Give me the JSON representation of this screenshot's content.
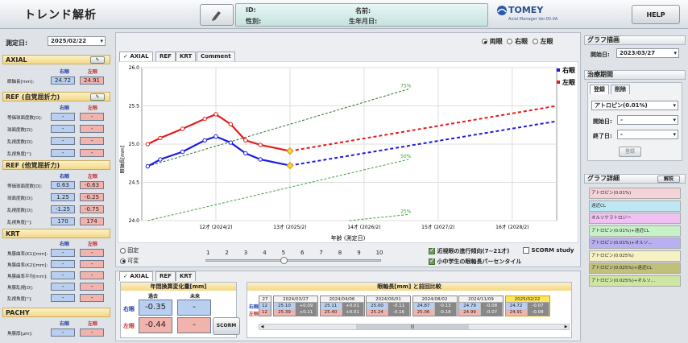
{
  "header": {
    "title": "トレンド解析",
    "id_label": "ID:",
    "name_label": "名前:",
    "sex_label": "性別:",
    "dob_label": "生年月日:",
    "logo": "TOMEY",
    "logo_sub": "Axial Manager  Ver.00.0A",
    "help": "HELP"
  },
  "left": {
    "date_label": "測定日:",
    "date_value": "2025/02/22",
    "axial": {
      "title": "AXIAL",
      "right": "右眼",
      "left": "左眼",
      "row": "眼軸長[mm]:",
      "r": "24.72",
      "l": "24.91"
    },
    "ref_self": {
      "title": "REF (自覚屈折力)",
      "right": "右眼",
      "left": "左眼",
      "rows": [
        {
          "label": "等価球面度数[D]:",
          "r": "-",
          "l": "-"
        },
        {
          "label": "球面度数[D]:",
          "r": "-",
          "l": "-"
        },
        {
          "label": "乱視度数[D]:",
          "r": "-",
          "l": "-"
        },
        {
          "label": "乱視角度[°]:",
          "r": "-",
          "l": "-"
        }
      ]
    },
    "ref_obj": {
      "title": "REF (他覚屈折力)",
      "right": "右眼",
      "left": "左眼",
      "rows": [
        {
          "label": "等価球面度数[D]:",
          "r": "0.63",
          "l": "-0.63"
        },
        {
          "label": "球面度数[D]:",
          "r": "1.25",
          "l": "-0.25"
        },
        {
          "label": "乱視度数[D]:",
          "r": "-1.25",
          "l": "-0.75"
        },
        {
          "label": "乱視角度[°]:",
          "r": "170",
          "l": "174"
        }
      ]
    },
    "krt": {
      "title": "KRT",
      "right": "右眼",
      "left": "左眼",
      "rows": [
        {
          "label": "角膜曲率(K1)[mm]:",
          "r": "-",
          "l": "-"
        },
        {
          "label": "角膜曲率(K2)[mm]:",
          "r": "-",
          "l": "-"
        },
        {
          "label": "角膜曲率平均[mm]:",
          "r": "-",
          "l": "-"
        },
        {
          "label": "角膜乱視[D]:",
          "r": "-",
          "l": "-"
        },
        {
          "label": "乱視角度[°]:",
          "r": "-",
          "l": "-"
        }
      ]
    },
    "pachy": {
      "title": "PACHY",
      "right": "右眼",
      "left": "左眼",
      "row": "角膜厚[µm]:",
      "r": "-",
      "l": "-"
    }
  },
  "center": {
    "eye_radio": [
      "両眼",
      "右眼",
      "左眼"
    ],
    "tabs": [
      "AXIAL",
      "REF",
      "KRT",
      "Comment"
    ],
    "legend_right": "右眼",
    "legend_left": "左眼",
    "fixed": "固定",
    "variable": "可変",
    "slider_ticks": [
      "1",
      "2",
      "3",
      "4",
      "5",
      "6",
      "7",
      "8",
      "9",
      "10"
    ],
    "chk1": "近視眼の進行傾向(7~21才)",
    "chk2": "小中学生の眼軸長パーセンタイル",
    "chk3": "SCORM study",
    "bottom_tabs": [
      "AXIAL",
      "REF",
      "KRT"
    ],
    "annual_title": "年間換算変化量[mm]",
    "past": "過去",
    "future": "未来",
    "row_r": "右眼",
    "row_l": "左眼",
    "past_r": "-0.35",
    "past_l": "-0.44",
    "future_r": "-",
    "future_l": "-",
    "scorm": "SCORM",
    "history_title": "眼軸長[mm] と前回比較",
    "history": [
      {
        "date": "2024/03/27",
        "r": "25.10",
        "rd": "+0.09",
        "l": "25.39",
        "ld": "+0.11"
      },
      {
        "date": "2024/04/06",
        "r": "25.11",
        "rd": "+0.01",
        "l": "25.40",
        "ld": "+0.01"
      },
      {
        "date": "2024/06/01",
        "r": "25.00",
        "rd": "-0.11",
        "l": "25.24",
        "ld": "-0.16"
      },
      {
        "date": "2024/08/02",
        "r": "24.87",
        "rd": "-0.13",
        "l": "25.06",
        "ld": "-0.18"
      },
      {
        "date": "2024/11/09",
        "r": "24.79",
        "rd": "-0.08",
        "l": "24.99",
        "ld": "-0.07"
      },
      {
        "date": "2025/02/22",
        "r": "24.72",
        "rd": "-0.07",
        "l": "24.91",
        "ld": "-0.08"
      }
    ],
    "hist_partial_date": "27",
    "hist_partial_vals": [
      "12",
      "12"
    ]
  },
  "chart_data": {
    "type": "line",
    "ylabel": "眼軸長[mm]",
    "xlabel": "年齢 (測定日)",
    "ylim": [
      24.0,
      26.0
    ],
    "xlim": [
      11.0,
      16.6
    ],
    "yticks": [
      "26.0",
      "25.5",
      "25.0",
      "24.5",
      "24.0"
    ],
    "xticks": [
      {
        "x": 12,
        "label": "12才 (2024/2)"
      },
      {
        "x": 13,
        "label": "13才 (2025/2)"
      },
      {
        "x": 14,
        "label": "14才 (2026/2)"
      },
      {
        "x": 15,
        "label": "15才 (2027/2)"
      },
      {
        "x": 16,
        "label": "16才 (2028/2)"
      }
    ],
    "series": [
      {
        "name": "右眼",
        "color": "#1a1ae6",
        "x": [
          11.08,
          11.25,
          11.55,
          11.85,
          12.0,
          12.2,
          12.4,
          12.6,
          13.0
        ],
        "y": [
          24.71,
          24.8,
          24.9,
          25.05,
          25.1,
          25.02,
          24.88,
          24.8,
          24.72
        ]
      },
      {
        "name": "左眼",
        "color": "#e61a1a",
        "x": [
          11.08,
          11.25,
          11.55,
          11.85,
          12.0,
          12.2,
          12.4,
          12.6,
          13.0
        ],
        "y": [
          25.0,
          25.08,
          25.2,
          25.33,
          25.39,
          25.26,
          25.05,
          24.99,
          24.91
        ]
      }
    ],
    "forecast": [
      {
        "color": "#1a1ae6",
        "x": [
          13.0,
          16.6
        ],
        "y": [
          24.72,
          25.3
        ]
      },
      {
        "color": "#e61a1a",
        "x": [
          13.0,
          16.6
        ],
        "y": [
          24.91,
          25.5
        ]
      }
    ],
    "percentiles": [
      {
        "label": "75%",
        "x": [
          11.08,
          14.6
        ],
        "y": [
          24.71,
          25.72
        ]
      },
      {
        "label": "50%",
        "x": [
          11.08,
          14.6
        ],
        "y": [
          24.0,
          24.8
        ]
      },
      {
        "label": "25%",
        "x": [
          13.8,
          14.6
        ],
        "y": [
          24.0,
          24.08
        ]
      }
    ]
  },
  "right": {
    "graph_title": "グラフ描画",
    "start_label": "開始日:",
    "start_value": "2023/03/27",
    "period_title": "治療期間",
    "tabs": [
      "登録",
      "削除"
    ],
    "treatment": "アトロピン(0.01%)",
    "begin_label": "開始日:",
    "begin_value": "-",
    "end_label": "終了日:",
    "end_value": "-",
    "register": "登録",
    "detail_title": "グラフ詳細",
    "detail_btn": "解説",
    "legend": [
      {
        "label": "アトロピン(0.01%)",
        "color": "#f4d3d8"
      },
      {
        "label": "遠近CL",
        "color": "#bfe6f5"
      },
      {
        "label": "オルソケラトロジー",
        "color": "#f0c2f2"
      },
      {
        "label": "アトロピン(0.01%)+遠近CL",
        "color": "#c7f2c7"
      },
      {
        "label": "アトロピン(0.01%)+オルソ...",
        "color": "#b8b0f0"
      },
      {
        "label": "アトロピン(0.025%)",
        "color": "#f7f2c4"
      },
      {
        "label": "アトロピン(0.025%)+遠近CL",
        "color": "#c0c07a"
      },
      {
        "label": "アトロピン(0.025%)+オルソ...",
        "color": "#cfe6a0"
      }
    ]
  }
}
